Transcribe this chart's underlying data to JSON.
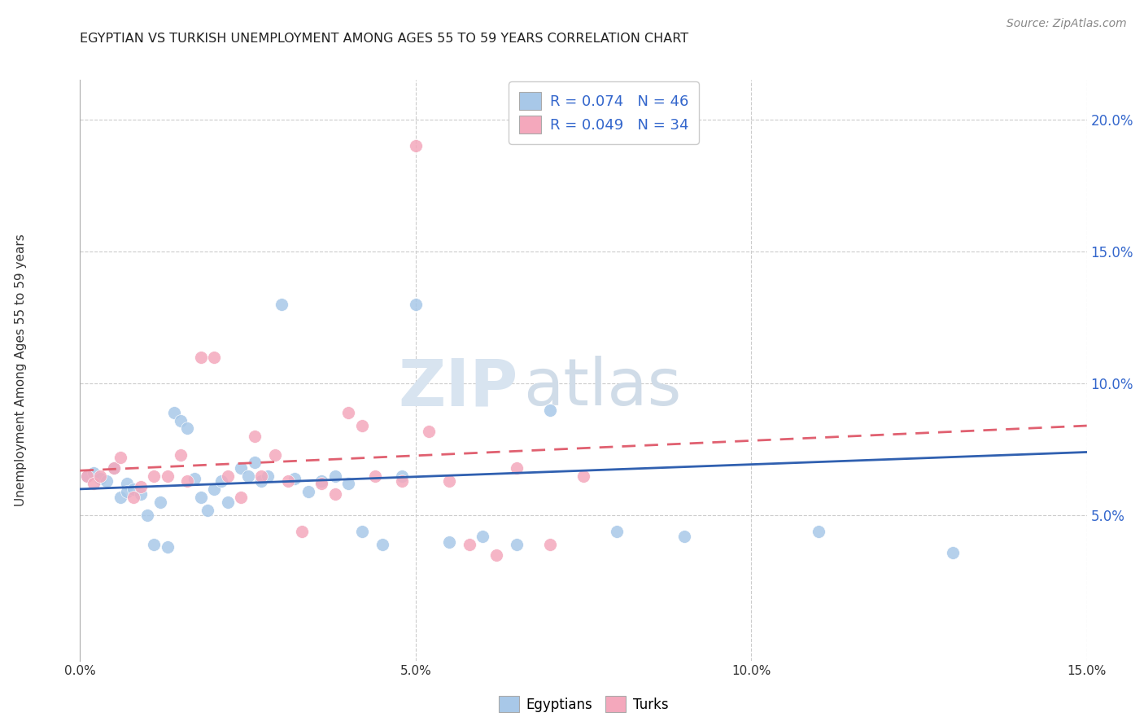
{
  "title": "EGYPTIAN VS TURKISH UNEMPLOYMENT AMONG AGES 55 TO 59 YEARS CORRELATION CHART",
  "source": "Source: ZipAtlas.com",
  "ylabel": "Unemployment Among Ages 55 to 59 years",
  "xlim": [
    0.0,
    0.15
  ],
  "ylim": [
    -0.005,
    0.215
  ],
  "xticks": [
    0.0,
    0.05,
    0.1,
    0.15
  ],
  "yticks": [
    0.05,
    0.1,
    0.15,
    0.2
  ],
  "blue_scatter_color": "#a8c8e8",
  "pink_scatter_color": "#f4a8bc",
  "blue_line_color": "#3060b0",
  "pink_line_color": "#e06070",
  "legend_box_blue": "#a8c8e8",
  "legend_box_pink": "#f4a8bc",
  "legend1_labels": [
    "R = 0.074   N = 46",
    "R = 0.049   N = 34"
  ],
  "legend2_labels": [
    "Egyptians",
    "Turks"
  ],
  "watermark_zip": "ZIP",
  "watermark_atlas": "atlas",
  "egyptians_x": [
    0.001,
    0.002,
    0.003,
    0.004,
    0.005,
    0.006,
    0.007,
    0.007,
    0.008,
    0.009,
    0.01,
    0.011,
    0.012,
    0.013,
    0.014,
    0.015,
    0.016,
    0.017,
    0.018,
    0.019,
    0.02,
    0.021,
    0.022,
    0.024,
    0.025,
    0.026,
    0.027,
    0.028,
    0.03,
    0.032,
    0.034,
    0.036,
    0.038,
    0.04,
    0.042,
    0.045,
    0.048,
    0.05,
    0.055,
    0.06,
    0.065,
    0.07,
    0.08,
    0.09,
    0.11,
    0.13
  ],
  "egyptians_y": [
    0.065,
    0.066,
    0.064,
    0.063,
    0.068,
    0.057,
    0.062,
    0.059,
    0.06,
    0.058,
    0.05,
    0.039,
    0.055,
    0.038,
    0.089,
    0.086,
    0.083,
    0.064,
    0.057,
    0.052,
    0.06,
    0.063,
    0.055,
    0.068,
    0.065,
    0.07,
    0.063,
    0.065,
    0.13,
    0.064,
    0.059,
    0.063,
    0.065,
    0.062,
    0.044,
    0.039,
    0.065,
    0.13,
    0.04,
    0.042,
    0.039,
    0.09,
    0.044,
    0.042,
    0.044,
    0.036
  ],
  "turks_x": [
    0.001,
    0.002,
    0.003,
    0.005,
    0.006,
    0.008,
    0.009,
    0.011,
    0.013,
    0.015,
    0.016,
    0.018,
    0.02,
    0.022,
    0.024,
    0.026,
    0.027,
    0.029,
    0.031,
    0.033,
    0.036,
    0.038,
    0.04,
    0.042,
    0.044,
    0.048,
    0.05,
    0.052,
    0.055,
    0.058,
    0.062,
    0.065,
    0.07,
    0.075
  ],
  "turks_y": [
    0.065,
    0.062,
    0.065,
    0.068,
    0.072,
    0.057,
    0.061,
    0.065,
    0.065,
    0.073,
    0.063,
    0.11,
    0.11,
    0.065,
    0.057,
    0.08,
    0.065,
    0.073,
    0.063,
    0.044,
    0.062,
    0.058,
    0.089,
    0.084,
    0.065,
    0.063,
    0.19,
    0.082,
    0.063,
    0.039,
    0.035,
    0.068,
    0.039,
    0.065
  ],
  "blue_line_x": [
    0.0,
    0.15
  ],
  "blue_line_y": [
    0.06,
    0.074
  ],
  "pink_line_x": [
    0.0,
    0.15
  ],
  "pink_line_y": [
    0.067,
    0.084
  ]
}
